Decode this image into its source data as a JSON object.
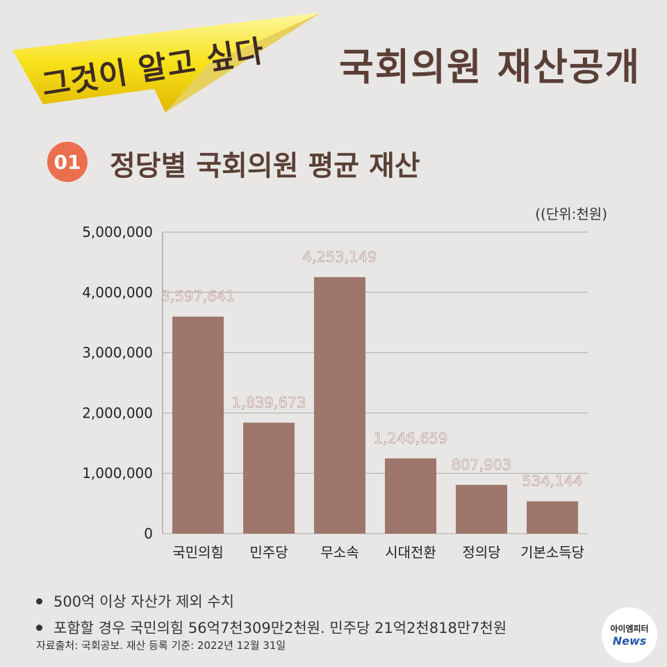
{
  "banner": {
    "text": "그것이 알고 싶다"
  },
  "title": "국회의원 재산공개",
  "section": {
    "number": "01",
    "title": "정당별 국회의원 평균 재산"
  },
  "unit_label": "((단위:천원)",
  "chart_data": {
    "type": "bar",
    "categories": [
      "국민의힘",
      "민주당",
      "무소속",
      "시대전환",
      "정의당",
      "기본소득당"
    ],
    "values": [
      3597641,
      1839673,
      4253149,
      1246659,
      807903,
      534144
    ],
    "value_labels": [
      "3,597,641",
      "1,839,673",
      "4,253,149",
      "1,246,659",
      "807,903",
      "534,144"
    ],
    "ylim": [
      0,
      5000000
    ],
    "yticks": [
      0,
      1000000,
      2000000,
      3000000,
      4000000,
      5000000
    ],
    "ytick_labels": [
      "0",
      "1,000,000",
      "2,000,000",
      "3,000,000",
      "4,000,000",
      "5,000,000"
    ],
    "grid": true,
    "bar_color": "#9e766c",
    "label_color": "#ffffff"
  },
  "notes": [
    "500억 이상 자산가 제외 수치",
    "포함할 경우 국민의힘 56억7천309만2천원. 민주당 21억2천818만7천원"
  ],
  "source": "자료출처: 국회공보. 재산 등록 기준: 2022년 12월 31일",
  "logo": {
    "top": "아이엠피터",
    "bottom": "News"
  },
  "colors": {
    "accent": "#ea6f4f",
    "title": "#5a3f37",
    "banner_yellow": "#f7e21a"
  }
}
